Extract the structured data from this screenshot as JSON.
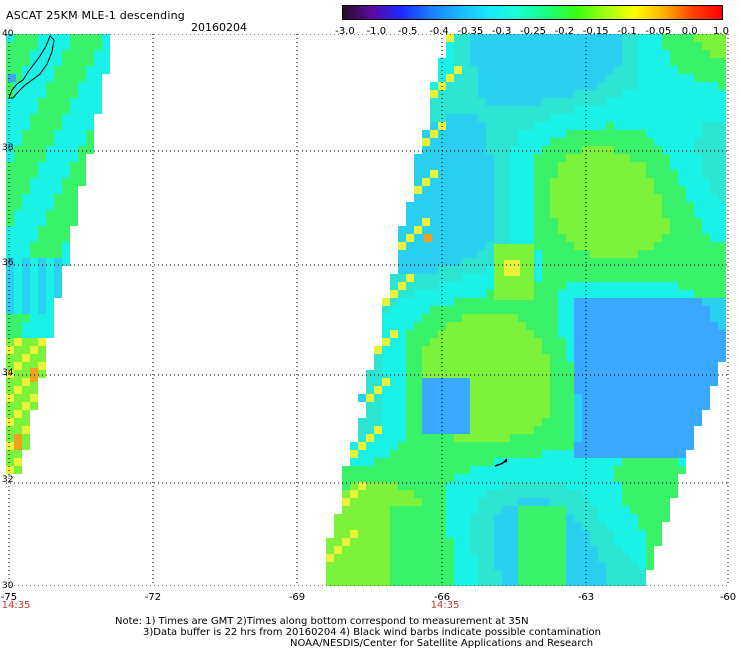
{
  "header": {
    "title": "ASCAT 25KM MLE-1 descending",
    "date": "20160204"
  },
  "colorbar": {
    "ticks": [
      "-3.0",
      "-1.0",
      "-0.5",
      "-0.4",
      "-0.35",
      "-0.3",
      "-0.25",
      "-0.2",
      "-0.15",
      "-0.1",
      "-0.05",
      "0.0",
      "1.0"
    ],
    "colors": [
      "#2a0a2a",
      "#5a0aa0",
      "#1a2aff",
      "#1a7bff",
      "#1ab8ff",
      "#19e8ff",
      "#19ffd0",
      "#19ff7a",
      "#36ff10",
      "#a0ff10",
      "#ffff00",
      "#ffb000",
      "#ff4000",
      "#ff0000"
    ]
  },
  "map": {
    "lat_labels": [
      "40",
      "38",
      "36",
      "34",
      "32",
      "30"
    ],
    "lon_labels": [
      "-75",
      "-72",
      "-69",
      "-66",
      "-63",
      "-60"
    ],
    "times": [
      "14:35",
      "14:35"
    ]
  },
  "notes": {
    "line1": "Note: 1) Times are GMT 2)Times along bottom correspond to measurement at 35N",
    "line2": "3)Data buffer is 22 hrs from 20160204 4) Black wind barbs indicate possible contamination",
    "line3": "NOAA/NESDIS/Center for Satellite Applications and Research"
  }
}
